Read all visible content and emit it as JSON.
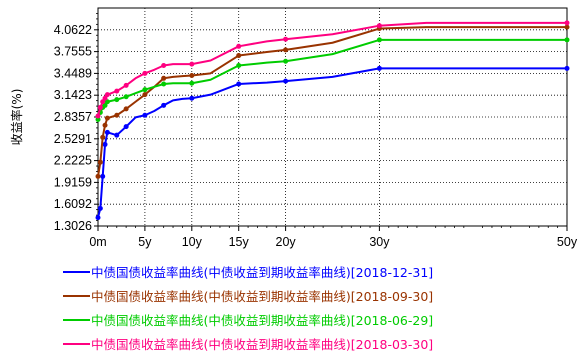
{
  "chart_data": {
    "type": "line",
    "ylabel": "收益率(%)",
    "xlim": [
      0,
      50
    ],
    "ylim": [
      1.3026,
      4.3688
    ],
    "grid": true,
    "x_ticks": [
      {
        "value": 0,
        "label": "0m"
      },
      {
        "value": 5,
        "label": "5y"
      },
      {
        "value": 10,
        "label": "10y"
      },
      {
        "value": 15,
        "label": "15y"
      },
      {
        "value": 20,
        "label": "20y"
      },
      {
        "value": 30,
        "label": "30y"
      },
      {
        "value": 50,
        "label": "50y"
      }
    ],
    "y_ticks": [
      "1.3026",
      "1.6092",
      "1.9159",
      "2.2225",
      "2.5291",
      "2.8357",
      "3.1423",
      "3.4489",
      "3.7555",
      "4.0622"
    ],
    "legend_position": "bottom",
    "series": [
      {
        "name": "中债国债收益率曲线(中债收益到期收益率曲线)[2018-12-31]",
        "color": "#0000ff",
        "points": [
          [
            0,
            1.42
          ],
          [
            0.25,
            1.55
          ],
          [
            0.5,
            2.0
          ],
          [
            0.75,
            2.45
          ],
          [
            1,
            2.62
          ],
          [
            2,
            2.58
          ],
          [
            3,
            2.7
          ],
          [
            4,
            2.83
          ],
          [
            5,
            2.86
          ],
          [
            6,
            2.92
          ],
          [
            7,
            3.0
          ],
          [
            8,
            3.07
          ],
          [
            9,
            3.09
          ],
          [
            10,
            3.1
          ],
          [
            12,
            3.15
          ],
          [
            15,
            3.3
          ],
          [
            18,
            3.32
          ],
          [
            20,
            3.34
          ],
          [
            25,
            3.4
          ],
          [
            30,
            3.52
          ],
          [
            35,
            3.52
          ],
          [
            40,
            3.52
          ],
          [
            45,
            3.52
          ],
          [
            50,
            3.52
          ]
        ],
        "markers": [
          [
            0,
            1.42
          ],
          [
            0.25,
            1.55
          ],
          [
            0.5,
            2.0
          ],
          [
            0.75,
            2.45
          ],
          [
            1,
            2.62
          ],
          [
            2,
            2.58
          ],
          [
            3,
            2.7
          ],
          [
            5,
            2.86
          ],
          [
            7,
            3.0
          ],
          [
            10,
            3.1
          ],
          [
            15,
            3.3
          ],
          [
            20,
            3.34
          ],
          [
            30,
            3.52
          ],
          [
            50,
            3.52
          ]
        ]
      },
      {
        "name": "中债国债收益率曲线(中债收益到期收益率曲线)[2018-09-30]",
        "color": "#993300",
        "points": [
          [
            0,
            2.0
          ],
          [
            0.25,
            2.2
          ],
          [
            0.5,
            2.55
          ],
          [
            0.75,
            2.72
          ],
          [
            1,
            2.82
          ],
          [
            2,
            2.86
          ],
          [
            3,
            2.95
          ],
          [
            4,
            3.05
          ],
          [
            5,
            3.15
          ],
          [
            6,
            3.26
          ],
          [
            7,
            3.38
          ],
          [
            8,
            3.4
          ],
          [
            9,
            3.41
          ],
          [
            10,
            3.42
          ],
          [
            12,
            3.45
          ],
          [
            15,
            3.7
          ],
          [
            18,
            3.75
          ],
          [
            20,
            3.78
          ],
          [
            25,
            3.88
          ],
          [
            30,
            4.08
          ],
          [
            35,
            4.1
          ],
          [
            40,
            4.1
          ],
          [
            45,
            4.1
          ],
          [
            50,
            4.1
          ]
        ],
        "markers": [
          [
            0,
            2.0
          ],
          [
            0.25,
            2.2
          ],
          [
            0.5,
            2.55
          ],
          [
            0.75,
            2.72
          ],
          [
            1,
            2.82
          ],
          [
            2,
            2.86
          ],
          [
            3,
            2.95
          ],
          [
            5,
            3.15
          ],
          [
            7,
            3.38
          ],
          [
            10,
            3.42
          ],
          [
            15,
            3.7
          ],
          [
            20,
            3.78
          ],
          [
            30,
            4.08
          ],
          [
            50,
            4.1
          ]
        ]
      },
      {
        "name": "中债国债收益率曲线(中债收益到期收益率曲线)[2018-06-29]",
        "color": "#00cc00",
        "points": [
          [
            0,
            2.8
          ],
          [
            0.25,
            2.9
          ],
          [
            0.5,
            2.97
          ],
          [
            0.75,
            3.0
          ],
          [
            1,
            3.05
          ],
          [
            2,
            3.08
          ],
          [
            3,
            3.12
          ],
          [
            4,
            3.17
          ],
          [
            5,
            3.22
          ],
          [
            6,
            3.26
          ],
          [
            7,
            3.3
          ],
          [
            8,
            3.31
          ],
          [
            9,
            3.31
          ],
          [
            10,
            3.31
          ],
          [
            12,
            3.36
          ],
          [
            15,
            3.56
          ],
          [
            18,
            3.6
          ],
          [
            20,
            3.62
          ],
          [
            25,
            3.72
          ],
          [
            30,
            3.92
          ],
          [
            35,
            3.92
          ],
          [
            40,
            3.92
          ],
          [
            45,
            3.92
          ],
          [
            50,
            3.92
          ]
        ],
        "markers": [
          [
            0,
            2.8
          ],
          [
            0.25,
            2.9
          ],
          [
            0.5,
            2.97
          ],
          [
            0.75,
            3.0
          ],
          [
            1,
            3.05
          ],
          [
            2,
            3.08
          ],
          [
            3,
            3.12
          ],
          [
            5,
            3.22
          ],
          [
            7,
            3.3
          ],
          [
            10,
            3.31
          ],
          [
            15,
            3.56
          ],
          [
            20,
            3.62
          ],
          [
            30,
            3.92
          ],
          [
            50,
            3.92
          ]
        ]
      },
      {
        "name": "中债国债收益率曲线(中债收益到期收益率曲线)[2018-03-30]",
        "color": "#ff0080",
        "points": [
          [
            0,
            2.85
          ],
          [
            0.25,
            2.97
          ],
          [
            0.5,
            3.05
          ],
          [
            0.75,
            3.1
          ],
          [
            1,
            3.15
          ],
          [
            2,
            3.2
          ],
          [
            3,
            3.28
          ],
          [
            4,
            3.38
          ],
          [
            5,
            3.45
          ],
          [
            6,
            3.5
          ],
          [
            7,
            3.56
          ],
          [
            8,
            3.58
          ],
          [
            9,
            3.58
          ],
          [
            10,
            3.58
          ],
          [
            12,
            3.63
          ],
          [
            15,
            3.83
          ],
          [
            18,
            3.9
          ],
          [
            20,
            3.93
          ],
          [
            25,
            4.0
          ],
          [
            30,
            4.12
          ],
          [
            35,
            4.16
          ],
          [
            40,
            4.16
          ],
          [
            45,
            4.16
          ],
          [
            50,
            4.16
          ]
        ],
        "markers": [
          [
            0,
            2.85
          ],
          [
            0.25,
            2.97
          ],
          [
            0.5,
            3.05
          ],
          [
            0.75,
            3.1
          ],
          [
            1,
            3.15
          ],
          [
            2,
            3.2
          ],
          [
            3,
            3.28
          ],
          [
            5,
            3.45
          ],
          [
            7,
            3.56
          ],
          [
            10,
            3.58
          ],
          [
            15,
            3.83
          ],
          [
            20,
            3.93
          ],
          [
            30,
            4.12
          ],
          [
            50,
            4.16
          ]
        ]
      }
    ]
  }
}
